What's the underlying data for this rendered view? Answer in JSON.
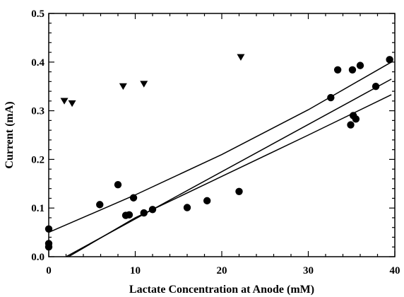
{
  "chart_data": {
    "type": "scatter",
    "title": "",
    "xlabel": "Lactate Concentration at Anode (mM)",
    "ylabel": "Current (mA)",
    "xlim": [
      0,
      40
    ],
    "ylim": [
      0.0,
      0.5
    ],
    "x_ticks": [
      0,
      10,
      20,
      30,
      40
    ],
    "y_ticks": [
      0.0,
      0.1,
      0.2,
      0.3,
      0.4,
      0.5
    ],
    "x_tick_labels": [
      "0",
      "10",
      "20",
      "30",
      "40"
    ],
    "y_tick_labels": [
      "0.0",
      "0.1",
      "0.2",
      "0.3",
      "0.4",
      "0.5"
    ],
    "grid": false,
    "legend": "none",
    "series": [
      {
        "marker": "circle",
        "color": "#000000",
        "points": [
          [
            0.0,
            0.057
          ],
          [
            0.0,
            0.027
          ],
          [
            0.0,
            0.02
          ],
          [
            5.9,
            0.107
          ],
          [
            8.0,
            0.148
          ],
          [
            8.9,
            0.085
          ],
          [
            9.3,
            0.086
          ],
          [
            9.8,
            0.121
          ],
          [
            11.0,
            0.09
          ],
          [
            12.0,
            0.097
          ],
          [
            16.0,
            0.101
          ],
          [
            18.3,
            0.115
          ],
          [
            22.0,
            0.134
          ],
          [
            32.6,
            0.327
          ],
          [
            33.4,
            0.384
          ],
          [
            34.9,
            0.271
          ],
          [
            35.1,
            0.384
          ],
          [
            35.2,
            0.29
          ],
          [
            35.5,
            0.283
          ],
          [
            36.0,
            0.393
          ],
          [
            37.8,
            0.35
          ],
          [
            39.4,
            0.405
          ]
        ]
      },
      {
        "marker": "triangle-down",
        "color": "#000000",
        "points": [
          [
            1.8,
            0.32
          ],
          [
            2.7,
            0.315
          ],
          [
            8.6,
            0.35
          ],
          [
            11.0,
            0.355
          ],
          [
            22.2,
            0.41
          ]
        ]
      }
    ],
    "fit_lines": [
      {
        "role": "upper-confidence",
        "curve": [
          [
            0,
            0.05
          ],
          [
            10,
            0.127
          ],
          [
            20,
            0.21
          ],
          [
            30,
            0.302
          ],
          [
            39.6,
            0.4
          ]
        ]
      },
      {
        "role": "regression",
        "curve": [
          [
            2.0,
            0.0
          ],
          [
            39.6,
            0.365
          ]
        ]
      },
      {
        "role": "lower-confidence",
        "curve": [
          [
            2.0,
            -0.003
          ],
          [
            10,
            0.08
          ],
          [
            20,
            0.165
          ],
          [
            30,
            0.25
          ],
          [
            39.6,
            0.333
          ]
        ]
      }
    ],
    "line_color": "#000000"
  }
}
